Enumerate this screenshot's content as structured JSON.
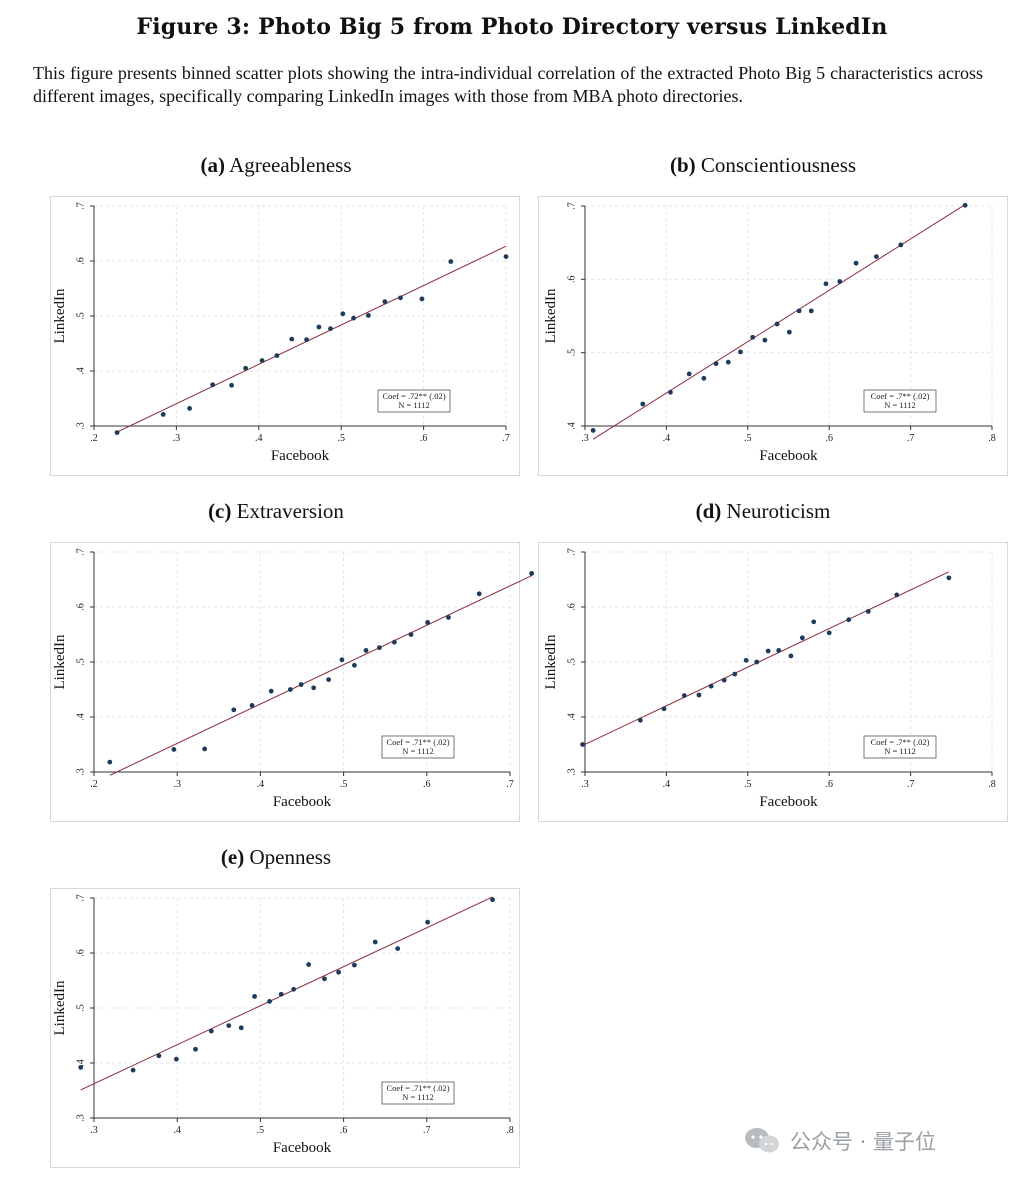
{
  "figure": {
    "title": "Figure 3: Photo Big 5 from Photo Directory versus LinkedIn",
    "caption": "This figure presents binned scatter plots showing the intra-individual correlation of the extracted Photo Big 5 characteristics across different images, specifically comparing LinkedIn images with those from MBA photo directories."
  },
  "panels": [
    {
      "letter": "(a)",
      "name": "Agreeableness"
    },
    {
      "letter": "(b)",
      "name": "Conscientiousness"
    },
    {
      "letter": "(c)",
      "name": "Extraversion"
    },
    {
      "letter": "(d)",
      "name": "Neuroticism"
    },
    {
      "letter": "(e)",
      "name": "Openness"
    }
  ],
  "watermark": {
    "text": "公众号 · 量子位",
    "icon": "wechat-icon"
  },
  "colors": {
    "point": "#1f3b5c",
    "fit_line": "#8b2a3a",
    "grid": "#e6e6e6"
  },
  "chart_data": [
    {
      "type": "scatter",
      "title": "Agreeableness",
      "xlabel": "Facebook",
      "ylabel": "LinkedIn",
      "xlim": [
        0.2,
        0.7
      ],
      "ylim": [
        0.3,
        0.7
      ],
      "xticks": [
        0.2,
        0.3,
        0.4,
        0.5,
        0.6,
        0.7
      ],
      "xtick_labels": [
        ".2",
        ".3",
        ".4",
        ".5",
        ".6",
        ".7"
      ],
      "yticks": [
        0.3,
        0.4,
        0.5,
        0.6,
        0.7
      ],
      "ytick_labels": [
        ".3",
        ".4",
        ".5",
        ".6",
        ".7"
      ],
      "points": [
        [
          0.228,
          0.288
        ],
        [
          0.284,
          0.321
        ],
        [
          0.316,
          0.332
        ],
        [
          0.344,
          0.375
        ],
        [
          0.367,
          0.374
        ],
        [
          0.384,
          0.405
        ],
        [
          0.404,
          0.419
        ],
        [
          0.422,
          0.428
        ],
        [
          0.44,
          0.458
        ],
        [
          0.458,
          0.457
        ],
        [
          0.473,
          0.48
        ],
        [
          0.487,
          0.477
        ],
        [
          0.502,
          0.504
        ],
        [
          0.515,
          0.496
        ],
        [
          0.533,
          0.501
        ],
        [
          0.553,
          0.526
        ],
        [
          0.572,
          0.533
        ],
        [
          0.598,
          0.531
        ],
        [
          0.633,
          0.599
        ],
        [
          0.7,
          0.608
        ]
      ],
      "fit": [
        [
          0.228,
          0.289
        ],
        [
          0.7,
          0.627
        ]
      ],
      "annotation": {
        "line1": "Coef = .72** (.02)",
        "line2": "N = 1112"
      },
      "grid": true
    },
    {
      "type": "scatter",
      "title": "Conscientiousness",
      "xlabel": "Facebook",
      "ylabel": "LinkedIn",
      "xlim": [
        0.3,
        0.8
      ],
      "ylim": [
        0.4,
        0.7
      ],
      "xticks": [
        0.3,
        0.4,
        0.5,
        0.6,
        0.7,
        0.8
      ],
      "xtick_labels": [
        ".3",
        ".4",
        ".5",
        ".6",
        ".7",
        ".8"
      ],
      "yticks": [
        0.4,
        0.5,
        0.6,
        0.7
      ],
      "ytick_labels": [
        ".4",
        ".5",
        ".6",
        ".7"
      ],
      "points": [
        [
          0.31,
          0.394
        ],
        [
          0.371,
          0.43
        ],
        [
          0.405,
          0.446
        ],
        [
          0.428,
          0.471
        ],
        [
          0.446,
          0.465
        ],
        [
          0.461,
          0.485
        ],
        [
          0.476,
          0.487
        ],
        [
          0.491,
          0.501
        ],
        [
          0.506,
          0.521
        ],
        [
          0.521,
          0.517
        ],
        [
          0.536,
          0.539
        ],
        [
          0.551,
          0.528
        ],
        [
          0.563,
          0.557
        ],
        [
          0.578,
          0.557
        ],
        [
          0.596,
          0.594
        ],
        [
          0.613,
          0.597
        ],
        [
          0.633,
          0.622
        ],
        [
          0.658,
          0.631
        ],
        [
          0.688,
          0.647
        ],
        [
          0.767,
          0.701
        ]
      ],
      "fit": [
        [
          0.31,
          0.382
        ],
        [
          0.767,
          0.702
        ]
      ],
      "annotation": {
        "line1": "Coef = .7** (.02)",
        "line2": "N = 1112"
      },
      "grid": true
    },
    {
      "type": "scatter",
      "title": "Extraversion",
      "xlabel": "Facebook",
      "ylabel": "LinkedIn",
      "xlim": [
        0.2,
        0.7
      ],
      "ylim": [
        0.3,
        0.7
      ],
      "xticks": [
        0.2,
        0.3,
        0.4,
        0.5,
        0.6,
        0.7
      ],
      "xtick_labels": [
        ".2",
        ".3",
        ".4",
        ".5",
        ".6",
        ".7"
      ],
      "yticks": [
        0.3,
        0.4,
        0.5,
        0.6,
        0.7
      ],
      "ytick_labels": [
        ".3",
        ".4",
        ".5",
        ".6",
        ".7"
      ],
      "points": [
        [
          0.219,
          0.318
        ],
        [
          0.296,
          0.341
        ],
        [
          0.333,
          0.342
        ],
        [
          0.368,
          0.413
        ],
        [
          0.39,
          0.421
        ],
        [
          0.413,
          0.447
        ],
        [
          0.436,
          0.45
        ],
        [
          0.449,
          0.459
        ],
        [
          0.464,
          0.453
        ],
        [
          0.482,
          0.468
        ],
        [
          0.498,
          0.504
        ],
        [
          0.513,
          0.494
        ],
        [
          0.527,
          0.521
        ],
        [
          0.543,
          0.526
        ],
        [
          0.561,
          0.536
        ],
        [
          0.581,
          0.55
        ],
        [
          0.601,
          0.572
        ],
        [
          0.626,
          0.581
        ],
        [
          0.663,
          0.624
        ],
        [
          0.726,
          0.661
        ]
      ],
      "fit": [
        [
          0.219,
          0.294
        ],
        [
          0.726,
          0.657
        ]
      ],
      "annotation": {
        "line1": "Coef = .71** (.02)",
        "line2": "N = 1112"
      },
      "grid": true
    },
    {
      "type": "scatter",
      "title": "Neuroticism",
      "xlabel": "Facebook",
      "ylabel": "LinkedIn",
      "xlim": [
        0.3,
        0.8
      ],
      "ylim": [
        0.3,
        0.7
      ],
      "xticks": [
        0.3,
        0.4,
        0.5,
        0.6,
        0.7,
        0.8
      ],
      "xtick_labels": [
        ".3",
        ".4",
        ".5",
        ".6",
        ".7",
        ".8"
      ],
      "yticks": [
        0.3,
        0.4,
        0.5,
        0.6,
        0.7
      ],
      "ytick_labels": [
        ".3",
        ".4",
        ".5",
        ".6",
        ".7"
      ],
      "points": [
        [
          0.297,
          0.35
        ],
        [
          0.368,
          0.394
        ],
        [
          0.397,
          0.415
        ],
        [
          0.422,
          0.439
        ],
        [
          0.44,
          0.44
        ],
        [
          0.455,
          0.456
        ],
        [
          0.471,
          0.467
        ],
        [
          0.484,
          0.478
        ],
        [
          0.498,
          0.503
        ],
        [
          0.511,
          0.5
        ],
        [
          0.525,
          0.52
        ],
        [
          0.538,
          0.521
        ],
        [
          0.553,
          0.511
        ],
        [
          0.567,
          0.544
        ],
        [
          0.581,
          0.573
        ],
        [
          0.6,
          0.553
        ],
        [
          0.624,
          0.577
        ],
        [
          0.648,
          0.592
        ],
        [
          0.683,
          0.622
        ],
        [
          0.747,
          0.653
        ]
      ],
      "fit": [
        [
          0.297,
          0.348
        ],
        [
          0.747,
          0.664
        ]
      ],
      "annotation": {
        "line1": "Coef = .7** (.02)",
        "line2": "N = 1112"
      },
      "grid": true
    },
    {
      "type": "scatter",
      "title": "Openness",
      "xlabel": "Facebook",
      "ylabel": "LinkedIn",
      "xlim": [
        0.3,
        0.8
      ],
      "ylim": [
        0.3,
        0.7
      ],
      "xticks": [
        0.3,
        0.4,
        0.5,
        0.6,
        0.7,
        0.8
      ],
      "xtick_labels": [
        ".3",
        ".4",
        ".5",
        ".6",
        ".7",
        ".8"
      ],
      "yticks": [
        0.3,
        0.4,
        0.5,
        0.6,
        0.7
      ],
      "ytick_labels": [
        ".3",
        ".4",
        ".5",
        ".6",
        ".7"
      ],
      "points": [
        [
          0.284,
          0.392
        ],
        [
          0.347,
          0.387
        ],
        [
          0.378,
          0.413
        ],
        [
          0.399,
          0.407
        ],
        [
          0.422,
          0.425
        ],
        [
          0.441,
          0.458
        ],
        [
          0.462,
          0.468
        ],
        [
          0.477,
          0.464
        ],
        [
          0.493,
          0.521
        ],
        [
          0.511,
          0.512
        ],
        [
          0.525,
          0.525
        ],
        [
          0.54,
          0.534
        ],
        [
          0.558,
          0.579
        ],
        [
          0.577,
          0.553
        ],
        [
          0.594,
          0.565
        ],
        [
          0.613,
          0.578
        ],
        [
          0.638,
          0.62
        ],
        [
          0.665,
          0.608
        ],
        [
          0.701,
          0.656
        ],
        [
          0.779,
          0.697
        ]
      ],
      "fit": [
        [
          0.284,
          0.351
        ],
        [
          0.779,
          0.702
        ]
      ],
      "annotation": {
        "line1": "Coef = .71** (.02)",
        "line2": "N = 1112"
      },
      "grid": true
    }
  ]
}
